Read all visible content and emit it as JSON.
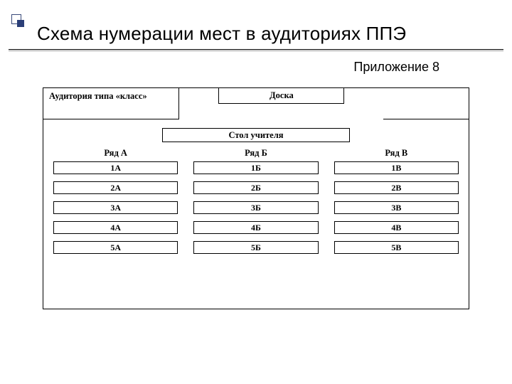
{
  "title": "Схема нумерации мест в аудиториях ППЭ",
  "appendix": "Приложение 8",
  "colors": {
    "bg": "#ffffff",
    "fg": "#000000",
    "bullet_border": "#3a4a7a",
    "bullet_fill": "#2b3f78"
  },
  "frame": {
    "caption": "Аудитория типа «класс»",
    "board": "Доска",
    "teacher": "Стол учителя",
    "columns": [
      {
        "header": "Ряд А",
        "seats": [
          "1А",
          "2А",
          "3А",
          "4А",
          "5А"
        ]
      },
      {
        "header": "Ряд Б",
        "seats": [
          "1Б",
          "2Б",
          "3Б",
          "4Б",
          "5Б"
        ]
      },
      {
        "header": "Ряд В",
        "seats": [
          "1В",
          "2В",
          "3В",
          "4В",
          "5В"
        ]
      }
    ]
  },
  "layout": {
    "slide_w": 720,
    "slide_h": 540,
    "title_fontsize": 26,
    "appendix_fontsize": 18,
    "label_fontsize": 12.5,
    "seat_fontsize": 12,
    "seat_h": 18,
    "seat_gap": 10,
    "col_gap": 22,
    "frame_margin_x": 48,
    "frame_h": 312
  }
}
